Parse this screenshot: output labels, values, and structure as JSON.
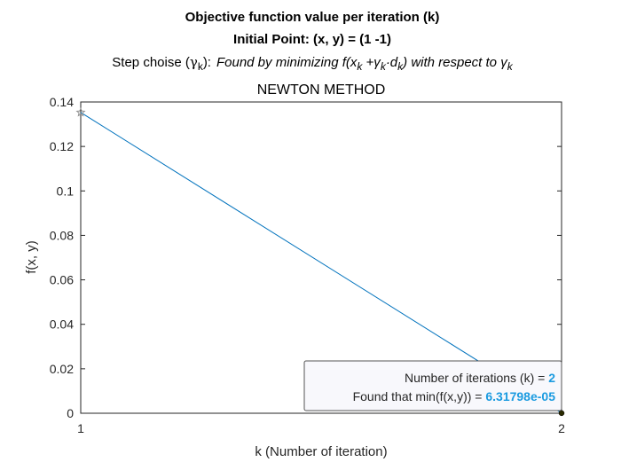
{
  "figure": {
    "title_line1": "Objective function value per iteration (k)",
    "title_line2": "Initial Point: (x, y) = (1 -1)",
    "step_prefix": "Step choise (",
    "step_gamma": "γ",
    "step_gamma_sub": "k",
    "step_close": "):",
    "step_desc_a": "Found by minimizing f(x",
    "step_desc_sub1": "k",
    "step_desc_b": " +γ",
    "step_desc_sub2": "k",
    "step_desc_c": "·d",
    "step_desc_sub3": "k",
    "step_desc_d": ") with respect to γ",
    "step_desc_sub4": "k",
    "axes_title": "NEWTON METHOD"
  },
  "datatip": {
    "line1_label": "Number of iterations (k) = ",
    "line1_value": "2",
    "line2_label": "Found that min(f(x,y)) = ",
    "line2_value": "6.31798e-05",
    "value_color": "#1c9be0"
  },
  "chart_data": {
    "type": "line",
    "title": "NEWTON METHOD",
    "xlabel": "k (Number of iteration)",
    "ylabel": "f(x, y)",
    "xlim": [
      1,
      2
    ],
    "ylim": [
      0,
      0.14
    ],
    "xticks": [
      1,
      2
    ],
    "xtick_labels": [
      "1",
      "2"
    ],
    "yticks": [
      0,
      0.02,
      0.04,
      0.06,
      0.08,
      0.1,
      0.12,
      0.14
    ],
    "ytick_labels": [
      "0",
      "0.02",
      "0.04",
      "0.06",
      "0.08",
      "0.1",
      "0.12",
      "0.14"
    ],
    "grid": false,
    "series": [
      {
        "x": [
          1,
          2
        ],
        "y": [
          0.1353,
          6.31798e-05
        ],
        "color": "#0072bd"
      }
    ],
    "start_marker": {
      "x": 1,
      "y": 0.1353,
      "shape": "star"
    },
    "end_marker": {
      "x": 2,
      "y": 6.31798e-05,
      "shape": "dot"
    }
  }
}
